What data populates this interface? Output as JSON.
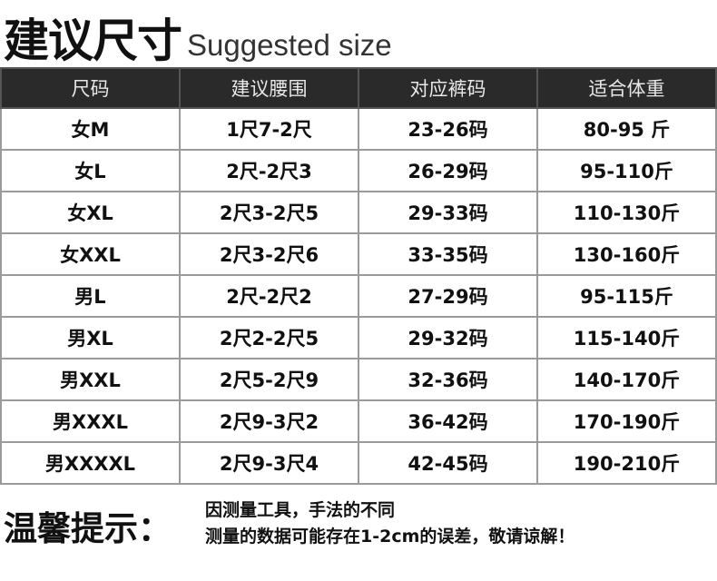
{
  "title": {
    "cn": "建议尺寸",
    "en": "Suggested size"
  },
  "table": {
    "headers": [
      "尺码",
      "建议腰围",
      "对应裤码",
      "适合体重"
    ],
    "rows": [
      [
        "女M",
        "1尺7-2尺",
        "23-26码",
        "80-95 斤"
      ],
      [
        "女L",
        "2尺-2尺3",
        "26-29码",
        "95-110斤"
      ],
      [
        "女XL",
        "2尺3-2尺5",
        "29-33码",
        "110-130斤"
      ],
      [
        "女XXL",
        "2尺3-2尺6",
        "33-35码",
        "130-160斤"
      ],
      [
        "男L",
        "2尺-2尺2",
        "27-29码",
        "95-115斤"
      ],
      [
        "男XL",
        "2尺2-2尺5",
        "29-32码",
        "115-140斤"
      ],
      [
        "男XXL",
        "2尺5-2尺9",
        "32-36码",
        "140-170斤"
      ],
      [
        "男XXXL",
        "2尺9-3尺2",
        "36-42码",
        "170-190斤"
      ],
      [
        "男XXXXL",
        "2尺9-3尺4",
        "42-45码",
        "190-210斤"
      ]
    ]
  },
  "tip": {
    "label": "温馨提示：",
    "lines": [
      "因测量工具，手法的不同",
      "测量的数据可能存在1-2cm的误差，敬请谅解！"
    ]
  }
}
